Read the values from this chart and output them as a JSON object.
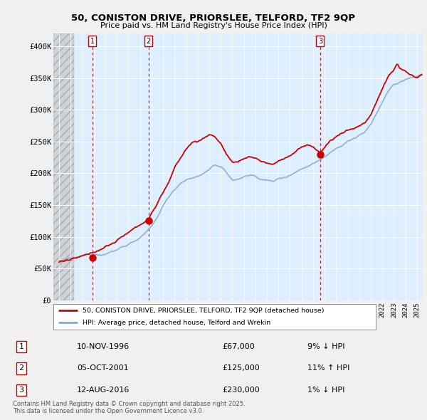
{
  "title1": "50, CONISTON DRIVE, PRIORSLEE, TELFORD, TF2 9QP",
  "title2": "Price paid vs. HM Land Registry's House Price Index (HPI)",
  "bg_color": "#f0f0f0",
  "plot_bg_color": "#ddeeff",
  "grid_color": "#ffffff",
  "sale_prices": [
    67000,
    125000,
    230000
  ],
  "sale_labels": [
    "1",
    "2",
    "3"
  ],
  "sale_pct": [
    "9% ↓ HPI",
    "11% ↑ HPI",
    "1% ↓ HPI"
  ],
  "sale_date_strs": [
    "10-NOV-1996",
    "05-OCT-2001",
    "12-AUG-2016"
  ],
  "sale_price_strs": [
    "£67,000",
    "£125,000",
    "£230,000"
  ],
  "line1_label": "50, CONISTON DRIVE, PRIORSLEE, TELFORD, TF2 9QP (detached house)",
  "line2_label": "HPI: Average price, detached house, Telford and Wrekin",
  "footer": "Contains HM Land Registry data © Crown copyright and database right 2025.\nThis data is licensed under the Open Government Licence v3.0.",
  "red_color": "#cc0000",
  "blue_color": "#88aacc",
  "vline_color": "#cc0000",
  "ylim_max": 420000,
  "ylim_min": 0,
  "yticks": [
    0,
    50000,
    100000,
    150000,
    200000,
    250000,
    300000,
    350000,
    400000
  ],
  "ytick_labels": [
    "£0",
    "£50K",
    "£100K",
    "£150K",
    "£200K",
    "£250K",
    "£300K",
    "£350K",
    "£400K"
  ],
  "xmin": 1994.0,
  "xmax": 2025.5,
  "sale_year_vals": [
    1996.87,
    2001.75,
    2016.62
  ]
}
